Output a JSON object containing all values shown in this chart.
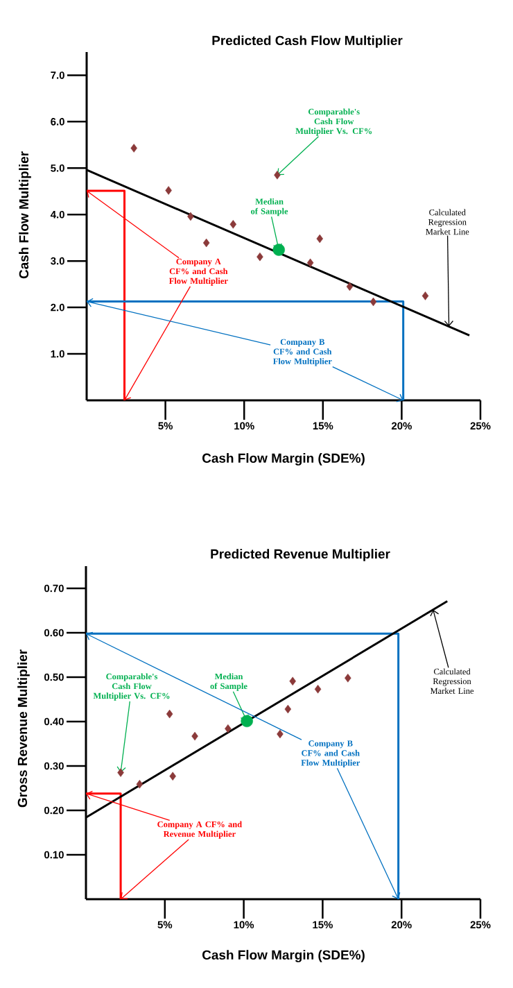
{
  "chart_data": [
    {
      "type": "scatter",
      "title": "Predicted Cash Flow Multiplier",
      "xlabel": "Cash Flow Margin (SDE%)",
      "ylabel": "Cash Flow Multiplier",
      "xlim": [
        0,
        25
      ],
      "ylim": [
        0,
        7.5
      ],
      "xticks": [
        {
          "value": 5,
          "label": "5%"
        },
        {
          "value": 10,
          "label": "10%"
        },
        {
          "value": 15,
          "label": "15%"
        },
        {
          "value": 20,
          "label": "20%"
        },
        {
          "value": 25,
          "label": "25%"
        }
      ],
      "yticks": [
        {
          "value": 1,
          "label": "1.0"
        },
        {
          "value": 2,
          "label": "2.0"
        },
        {
          "value": 3,
          "label": "3.0"
        },
        {
          "value": 4,
          "label": "4.0"
        },
        {
          "value": 5,
          "label": "5.0"
        },
        {
          "value": 6,
          "label": "6.0"
        },
        {
          "value": 7,
          "label": "7.0"
        }
      ],
      "series": [
        {
          "type": "line",
          "color": "#ff0000",
          "marker": "none",
          "x": [
            0,
            2.4,
            2.4
          ],
          "values": [
            4.51,
            4.51,
            0
          ]
        },
        {
          "type": "line",
          "color": "#0070c0",
          "marker": "none",
          "x": [
            0,
            20.1,
            20.1
          ],
          "values": [
            2.13,
            2.13,
            0
          ]
        },
        {
          "type": "line",
          "color": "#000000",
          "marker": "none",
          "x": [
            0,
            24.3
          ],
          "values": [
            4.96,
            1.4
          ]
        },
        {
          "color": "#8b3a3a",
          "marker": "diamond",
          "x": [
            3.0,
            5.2,
            6.6,
            7.6,
            9.3,
            11.0,
            12.1,
            14.2,
            14.8,
            16.7,
            18.2,
            21.5
          ],
          "values": [
            5.43,
            4.52,
            3.96,
            3.39,
            3.79,
            3.09,
            4.85,
            2.96,
            3.48,
            2.45,
            2.12,
            2.25
          ]
        },
        {
          "color": "#00b050",
          "marker": "circle",
          "x": [
            12.2
          ],
          "values": [
            3.24
          ]
        }
      ],
      "annotations": [
        {
          "text": "Comparable's Cash Flow Multiplier Vs. CF%",
          "x": 12.1,
          "y": 4.85
        },
        {
          "text": "Median of Sample",
          "x": 12.2,
          "y": 3.24
        },
        {
          "text": "Calculated Regression Market Line",
          "x": 23.0,
          "y": 1.59
        },
        {
          "text": "Company A CF% and Cash Flow Multiplier",
          "x": 0,
          "y": 4.51
        },
        {
          "text": "Company B CF% and Cash Flow Multiplier",
          "x": 0,
          "y": 2.13
        }
      ]
    },
    {
      "type": "scatter",
      "title": "Predicted Revenue Multiplier",
      "xlabel": "Cash Flow Margin (SDE%)",
      "ylabel": "Gross Revenue Multiplier",
      "xlim": [
        0,
        25
      ],
      "ylim": [
        0,
        0.75
      ],
      "xticks": [
        {
          "value": 5,
          "label": "5%"
        },
        {
          "value": 10,
          "label": "10%"
        },
        {
          "value": 15,
          "label": "15%"
        },
        {
          "value": 20,
          "label": "20%"
        },
        {
          "value": 25,
          "label": "25%"
        }
      ],
      "yticks": [
        {
          "value": 0.1,
          "label": "0.10"
        },
        {
          "value": 0.2,
          "label": "0.20"
        },
        {
          "value": 0.3,
          "label": "0.30"
        },
        {
          "value": 0.4,
          "label": "0.40"
        },
        {
          "value": 0.5,
          "label": "0.50"
        },
        {
          "value": 0.6,
          "label": "0.60"
        },
        {
          "value": 0.7,
          "label": "0.70"
        }
      ],
      "series": [
        {
          "type": "line",
          "color": "#ff0000",
          "marker": "none",
          "x": [
            0,
            2.2,
            2.2
          ],
          "values": [
            0.238,
            0.238,
            0
          ]
        },
        {
          "type": "line",
          "color": "#0070c0",
          "marker": "none",
          "x": [
            0,
            19.8,
            19.8
          ],
          "values": [
            0.598,
            0.598,
            0
          ]
        },
        {
          "type": "line",
          "color": "#000000",
          "marker": "none",
          "x": [
            0,
            22.9
          ],
          "values": [
            0.184,
            0.671
          ]
        },
        {
          "color": "#8b3a3a",
          "marker": "diamond",
          "x": [
            2.2,
            3.4,
            5.5,
            5.3,
            6.9,
            9.0,
            12.3,
            12.8,
            13.1,
            14.7,
            16.6
          ],
          "values": [
            0.285,
            0.259,
            0.277,
            0.417,
            0.367,
            0.384,
            0.372,
            0.428,
            0.491,
            0.473,
            0.498
          ]
        },
        {
          "color": "#00b050",
          "marker": "circle",
          "x": [
            10.2
          ],
          "values": [
            0.401
          ]
        }
      ],
      "annotations": [
        {
          "text": "Comparable's Cash Flow Multiplier Vs. CF%",
          "x": 2.2,
          "y": 0.285
        },
        {
          "text": "Median of Sample",
          "x": 10.2,
          "y": 0.401
        },
        {
          "text": "Calculated Regression Market Line",
          "x": 22.0,
          "y": 0.652
        },
        {
          "text": "Company A CF% and Revenue Multiplier",
          "x": 0,
          "y": 0.238
        },
        {
          "text": "Company B CF% and Cash Flow Multiplier",
          "x": 0,
          "y": 0.598
        }
      ]
    }
  ]
}
